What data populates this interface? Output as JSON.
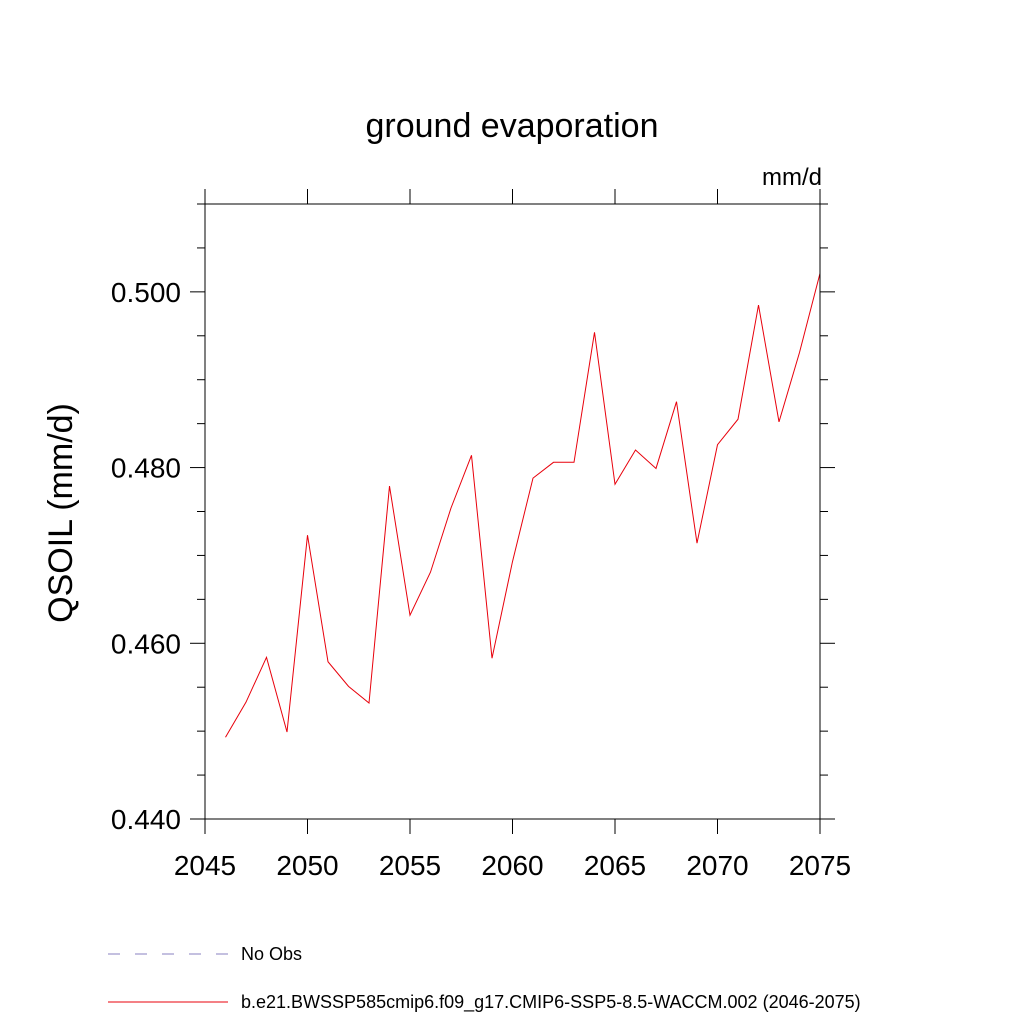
{
  "chart_data": {
    "type": "line",
    "title": "ground evaporation",
    "units": "mm/d",
    "ylabel": "QSOIL  (mm/d)",
    "xlabel": "",
    "xlim": [
      2045,
      2075
    ],
    "ylim": [
      0.44,
      0.51
    ],
    "x_ticks": [
      2045,
      2050,
      2055,
      2060,
      2065,
      2070,
      2075
    ],
    "x_tick_labels": [
      "2045",
      "2050",
      "2055",
      "2060",
      "2065",
      "2070",
      "2075"
    ],
    "y_ticks": [
      0.44,
      0.46,
      0.48,
      0.5
    ],
    "y_tick_labels": [
      "0.440",
      "0.460",
      "0.480",
      "0.500"
    ],
    "x_minor_step": 1,
    "y_minor_step": 0.005,
    "grid": false,
    "legend_position": "bottom",
    "series": [
      {
        "name": "b.e21.BWSSP585cmip6.f09_g17.CMIP6-SSP5-8.5-WACCM.002 (2046-2075)",
        "color": "#e8000b",
        "dash": "solid",
        "x": [
          2046,
          2047,
          2048,
          2049,
          2050,
          2051,
          2052,
          2053,
          2054,
          2055,
          2056,
          2057,
          2058,
          2059,
          2060,
          2061,
          2062,
          2063,
          2064,
          2065,
          2066,
          2067,
          2068,
          2069,
          2070,
          2071,
          2072,
          2073,
          2074,
          2075
        ],
        "values": [
          0.4493,
          0.4533,
          0.4584,
          0.4499,
          0.4723,
          0.4579,
          0.4551,
          0.4532,
          0.4779,
          0.4632,
          0.4681,
          0.4754,
          0.4814,
          0.4583,
          0.4693,
          0.4788,
          0.4806,
          0.4806,
          0.4954,
          0.4781,
          0.482,
          0.4799,
          0.4875,
          0.4714,
          0.4826,
          0.4855,
          0.4985,
          0.4852,
          0.4931,
          0.5021
        ]
      },
      {
        "name": "No Obs",
        "color": "#8a80c0",
        "dash": "dashed",
        "x": [],
        "values": []
      }
    ]
  }
}
